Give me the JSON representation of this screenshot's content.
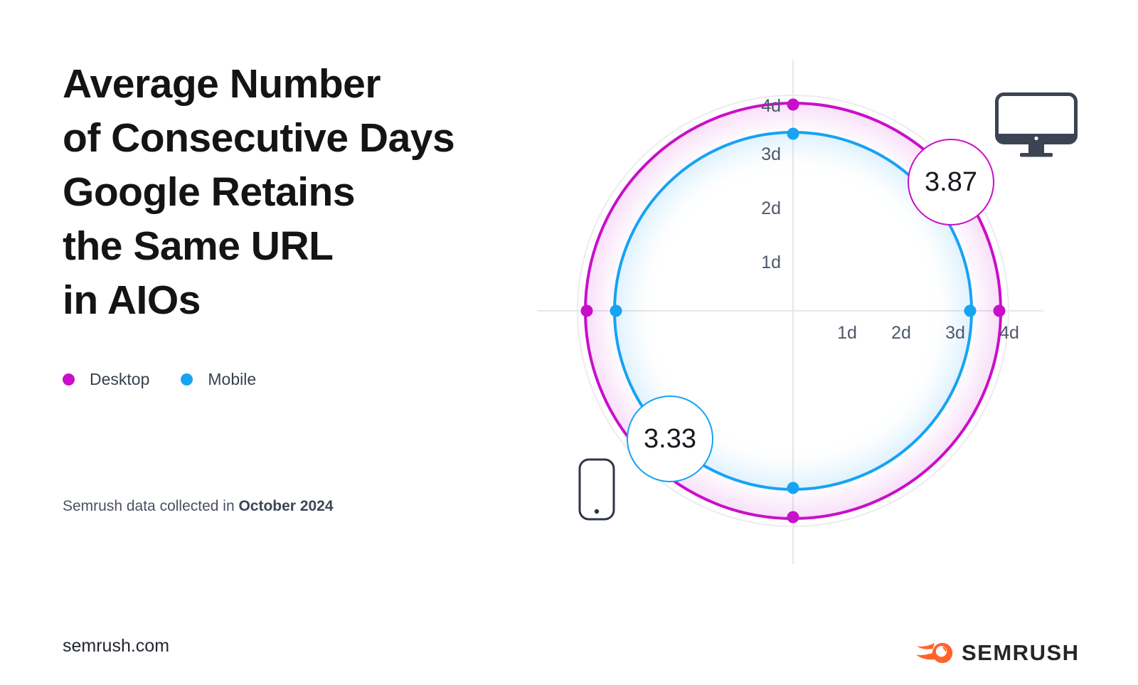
{
  "title": {
    "lines": [
      "Average Number",
      "of Consecutive Days",
      "Google Retains",
      "the Same URL",
      "in AIOs"
    ]
  },
  "legend": [
    {
      "label": "Desktop",
      "color": "#C90FC9"
    },
    {
      "label": "Mobile",
      "color": "#16A3F2"
    }
  ],
  "source_note": {
    "prefix": "Semrush data collected in ",
    "bold": "October 2024"
  },
  "footer": {
    "site": "semrush.com",
    "brand": "SEMRUSH",
    "brand_color": "#FF642D"
  },
  "chart_data": {
    "type": "radial-ring",
    "title": "Average Number of Consecutive Days Google Retains the Same URL in AIOs",
    "unit": "days",
    "axis_ticks": [
      "1d",
      "2d",
      "3d",
      "4d"
    ],
    "axis_max": 4,
    "grid": "single outer circle at 4d with vertical and horizontal crosshair axes",
    "legend_position": "left",
    "series": [
      {
        "name": "Desktop",
        "value": 3.87,
        "label": "3.87",
        "color": "#C90FC9",
        "icon": "desktop-monitor-icon"
      },
      {
        "name": "Mobile",
        "value": 3.33,
        "label": "3.33",
        "color": "#16A3F2",
        "icon": "mobile-phone-icon"
      }
    ]
  }
}
